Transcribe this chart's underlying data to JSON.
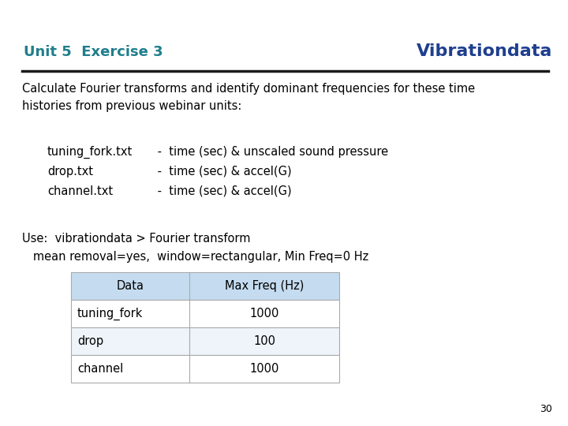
{
  "title": "Unit 5  Exercise 3",
  "title_color": "#1F7E8C",
  "brand": "Vibrationdata",
  "brand_color": "#1F3F8F",
  "body_text_1": "Calculate Fourier transforms and identify dominant frequencies for these time\nhistories from previous webinar units:",
  "file_items": [
    {
      "name": "tuning_fork.txt",
      "desc": " -  time (sec) & unscaled sound pressure"
    },
    {
      "name": "drop.txt",
      "desc": " -  time (sec) & accel(G)"
    },
    {
      "name": "channel.txt",
      "desc": " -  time (sec) & accel(G)"
    }
  ],
  "use_line1": "Use:  vibrationdata > Fourier transform",
  "use_line2": "   mean removal=yes,  window=rectangular, Min Freq=0 Hz",
  "table_header": [
    "Data",
    "Max Freq (Hz)"
  ],
  "table_rows": [
    [
      "tuning_fork",
      "1000"
    ],
    [
      "drop",
      "100"
    ],
    [
      "channel",
      "1000"
    ]
  ],
  "table_header_bg": "#C5DCF0",
  "table_row_bg": "#FFFFFF",
  "table_alt_bg": "#EEF4FA",
  "page_number": "30",
  "bg_color": "#FFFFFF",
  "line_color": "#1A1A1A",
  "body_font_size": 10.5,
  "title_font_size": 13,
  "brand_font_size": 16
}
